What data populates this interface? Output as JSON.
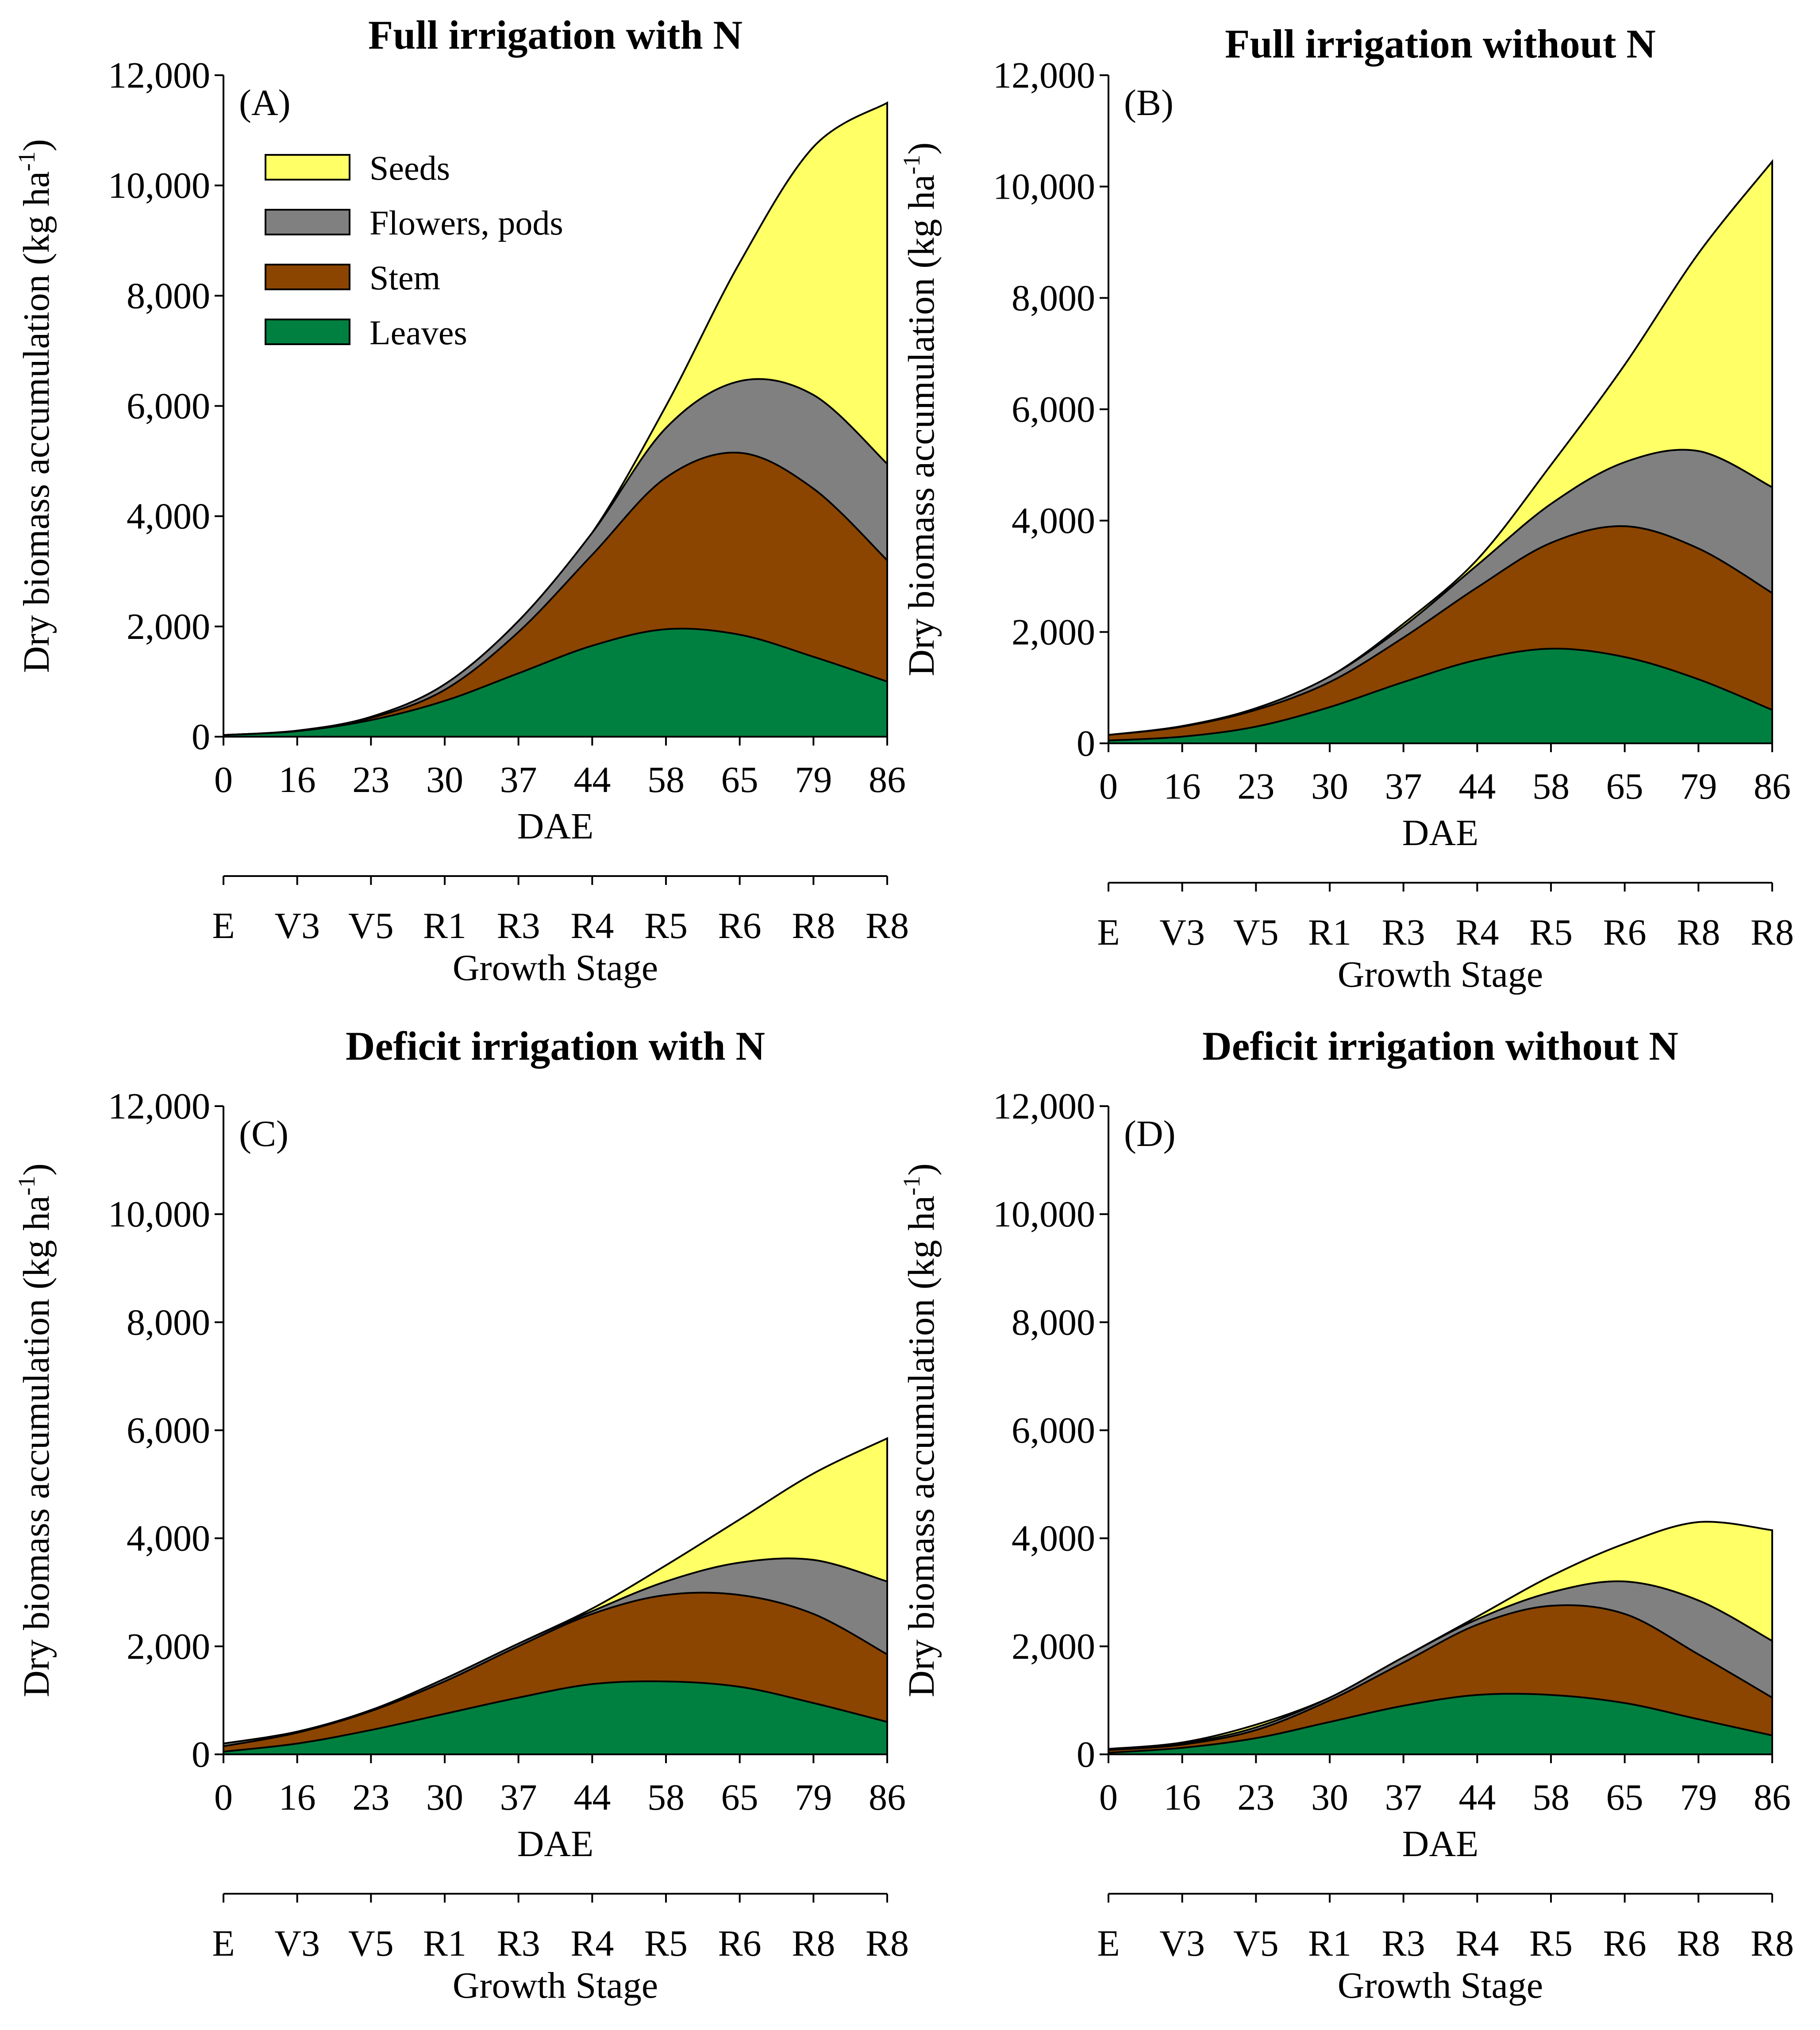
{
  "colors": {
    "seeds": "#ffff66",
    "flowers_pods": "#808080",
    "stem": "#8b4500",
    "leaves": "#008040"
  },
  "chart_data": [
    {
      "type": "area",
      "panel": "(A)",
      "title": "Full irrigation with N",
      "ylabel": "Dry biomass accumulation (kg ha",
      "ylabel_sup": "-1",
      "ylabel_close": ")",
      "xlabel": "DAE",
      "x2label": "Growth Stage",
      "ylim": [
        0,
        12000
      ],
      "yticks": [
        "0",
        "2,000",
        "4,000",
        "6,000",
        "8,000",
        "10,000",
        "12,000"
      ],
      "x": [
        "0",
        "16",
        "23",
        "30",
        "37",
        "44",
        "58",
        "65",
        "79",
        "86"
      ],
      "growth_stage": [
        "E",
        "V3",
        "V5",
        "R1",
        "R3",
        "R4",
        "R5",
        "R6",
        "R8",
        "R8"
      ],
      "legend": [
        "Seeds",
        "Flowers, pods",
        "Stem",
        "Leaves"
      ],
      "series": [
        {
          "name": "Leaves",
          "cumulative": [
            30,
            100,
            300,
            650,
            1150,
            1650,
            1950,
            1850,
            1450,
            1000
          ]
        },
        {
          "name": "Stem",
          "cumulative": [
            30,
            110,
            340,
            850,
            1900,
            3300,
            4700,
            5150,
            4500,
            3200
          ]
        },
        {
          "name": "Flowers, pods",
          "cumulative": [
            30,
            110,
            360,
            950,
            2100,
            3700,
            5600,
            6450,
            6200,
            4950
          ]
        },
        {
          "name": "Seeds",
          "cumulative": [
            30,
            110,
            360,
            950,
            2100,
            3700,
            6000,
            8600,
            10700,
            11500
          ]
        }
      ]
    },
    {
      "type": "area",
      "panel": "(B)",
      "title": "Full irrigation without N",
      "ylabel": "Dry biomass accumulation (kg ha",
      "ylabel_sup": "-1",
      "ylabel_close": ")",
      "xlabel": "DAE",
      "x2label": "Growth Stage",
      "ylim": [
        0,
        12000
      ],
      "yticks": [
        "0",
        "2,000",
        "4,000",
        "6,000",
        "8,000",
        "10,000",
        "12,000"
      ],
      "x": [
        "0",
        "16",
        "23",
        "30",
        "37",
        "44",
        "58",
        "65",
        "79",
        "86"
      ],
      "growth_stage": [
        "E",
        "V3",
        "V5",
        "R1",
        "R3",
        "R4",
        "R5",
        "R6",
        "R8",
        "R8"
      ],
      "legend": [
        "Seeds",
        "Flowers, pods",
        "Stem",
        "Leaves"
      ],
      "series": [
        {
          "name": "Leaves",
          "cumulative": [
            50,
            120,
            300,
            650,
            1100,
            1500,
            1700,
            1550,
            1150,
            600
          ]
        },
        {
          "name": "Stem",
          "cumulative": [
            150,
            300,
            600,
            1100,
            1900,
            2800,
            3600,
            3900,
            3500,
            2700
          ]
        },
        {
          "name": "Flowers, pods",
          "cumulative": [
            150,
            310,
            630,
            1200,
            2100,
            3200,
            4300,
            5050,
            5250,
            4600
          ]
        },
        {
          "name": "Seeds",
          "cumulative": [
            150,
            310,
            630,
            1200,
            2150,
            3300,
            5000,
            6800,
            8800,
            10450
          ]
        }
      ]
    },
    {
      "type": "area",
      "panel": "(C)",
      "title": "Deficit irrigation with N",
      "ylabel": "Dry biomass accumulation (kg ha",
      "ylabel_sup": "-1",
      "ylabel_close": ")",
      "xlabel": "DAE",
      "x2label": "Growth Stage",
      "ylim": [
        0,
        12000
      ],
      "yticks": [
        "0",
        "2,000",
        "4,000",
        "6,000",
        "8,000",
        "10,000",
        "12,000"
      ],
      "x": [
        "0",
        "16",
        "23",
        "30",
        "37",
        "44",
        "58",
        "65",
        "79",
        "86"
      ],
      "growth_stage": [
        "E",
        "V3",
        "V5",
        "R1",
        "R3",
        "R4",
        "R5",
        "R6",
        "R8",
        "R8"
      ],
      "legend": [
        "Seeds",
        "Flowers, pods",
        "Stem",
        "Leaves"
      ],
      "series": [
        {
          "name": "Leaves",
          "cumulative": [
            50,
            200,
            450,
            750,
            1050,
            1300,
            1350,
            1250,
            950,
            600
          ]
        },
        {
          "name": "Stem",
          "cumulative": [
            150,
            400,
            800,
            1350,
            2000,
            2600,
            2950,
            2950,
            2600,
            1850
          ]
        },
        {
          "name": "Flowers, pods",
          "cumulative": [
            200,
            420,
            820,
            1400,
            2050,
            2650,
            3200,
            3550,
            3600,
            3200
          ]
        },
        {
          "name": "Seeds",
          "cumulative": [
            200,
            420,
            820,
            1400,
            2050,
            2700,
            3500,
            4350,
            5200,
            5850
          ]
        }
      ]
    },
    {
      "type": "area",
      "panel": "(D)",
      "title": "Deficit irrigation without N",
      "ylabel": "Dry biomass accumulation (kg ha",
      "ylabel_sup": "-1",
      "ylabel_close": ")",
      "xlabel": "DAE",
      "x2label": "Growth Stage",
      "ylim": [
        0,
        12000
      ],
      "yticks": [
        "0",
        "2,000",
        "4,000",
        "6,000",
        "8,000",
        "10,000",
        "12,000"
      ],
      "x": [
        "0",
        "16",
        "23",
        "30",
        "37",
        "44",
        "58",
        "65",
        "79",
        "86"
      ],
      "growth_stage": [
        "E",
        "V3",
        "V5",
        "R1",
        "R3",
        "R4",
        "R5",
        "R6",
        "R8",
        "R8"
      ],
      "legend": [
        "Seeds",
        "Flowers, pods",
        "Stem",
        "Leaves"
      ],
      "series": [
        {
          "name": "Leaves",
          "cumulative": [
            30,
            120,
            300,
            600,
            900,
            1100,
            1100,
            950,
            650,
            350
          ]
        },
        {
          "name": "Stem",
          "cumulative": [
            80,
            180,
            450,
            1000,
            1700,
            2400,
            2750,
            2600,
            1850,
            1050
          ]
        },
        {
          "name": "Flowers, pods",
          "cumulative": [
            100,
            200,
            500,
            1050,
            1800,
            2500,
            3000,
            3200,
            2850,
            2100
          ]
        },
        {
          "name": "Seeds",
          "cumulative": [
            100,
            220,
            550,
            1050,
            1800,
            2550,
            3300,
            3900,
            4300,
            4150
          ]
        }
      ]
    }
  ]
}
